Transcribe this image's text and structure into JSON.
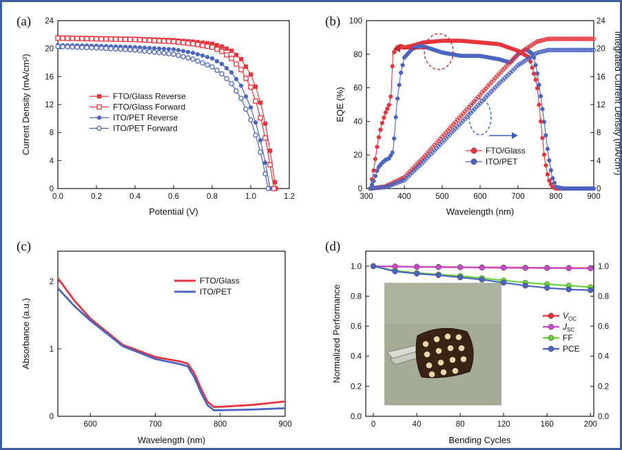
{
  "colors": {
    "red": "#e8343c",
    "blue": "#4a64c0",
    "magenta": "#c74bc8",
    "green": "#6ad13c",
    "annot_red": "#c0282e",
    "annot_blue": "#3c5ec4"
  },
  "chart_data": [
    {
      "panel": "(a)",
      "type": "line",
      "xlabel": "Potential (V)",
      "ylabel": "Current Density (mA/cm²)",
      "xlim": [
        0,
        1.2
      ],
      "ylim": [
        0,
        24
      ],
      "xticks": [
        "0.0",
        "0.2",
        "0.4",
        "0.6",
        "0.8",
        "1.0",
        "1.2"
      ],
      "yticks": [
        "0",
        "4",
        "8",
        "12",
        "16",
        "20",
        "24"
      ],
      "legend_position": "center-left",
      "series": [
        {
          "name": "FTO/Glass Reverse",
          "color": "#e8343c",
          "marker": "filled-square",
          "x": [
            0,
            0.2,
            0.4,
            0.6,
            0.7,
            0.8,
            0.85,
            0.9,
            0.95,
            1.0,
            1.03,
            1.06,
            1.08,
            1.1,
            1.12,
            1.13
          ],
          "y": [
            21.6,
            21.5,
            21.4,
            21.2,
            21.0,
            20.7,
            20.3,
            19.7,
            18.5,
            16.3,
            14.2,
            11.3,
            8.6,
            5.4,
            1.8,
            0
          ]
        },
        {
          "name": "FTO/Glass Forward",
          "color": "#e8343c",
          "marker": "open-square",
          "x": [
            0,
            0.2,
            0.4,
            0.6,
            0.7,
            0.8,
            0.85,
            0.9,
            0.95,
            1.0,
            1.03,
            1.06,
            1.08,
            1.1,
            1.12
          ],
          "y": [
            21.5,
            21.4,
            21.3,
            21.0,
            20.7,
            20.2,
            19.6,
            18.6,
            17.0,
            14.5,
            12.1,
            9.1,
            6.6,
            3.4,
            0
          ]
        },
        {
          "name": "ITO/PET Reverse",
          "color": "#4a64c0",
          "marker": "filled-circle",
          "x": [
            0,
            0.2,
            0.4,
            0.6,
            0.7,
            0.8,
            0.85,
            0.9,
            0.95,
            1.0,
            1.03,
            1.05,
            1.07,
            1.09,
            1.1
          ],
          "y": [
            20.5,
            20.4,
            20.2,
            19.9,
            19.4,
            18.6,
            17.8,
            16.6,
            14.7,
            11.6,
            9.0,
            6.9,
            4.4,
            1.6,
            0
          ]
        },
        {
          "name": "ITO/PET Forward",
          "color": "#4a64c0",
          "marker": "open-circle",
          "x": [
            0,
            0.2,
            0.4,
            0.6,
            0.7,
            0.8,
            0.85,
            0.9,
            0.95,
            1.0,
            1.03,
            1.05,
            1.07,
            1.08,
            1.09
          ],
          "y": [
            20.3,
            20.1,
            19.8,
            19.2,
            18.5,
            17.4,
            16.4,
            15.0,
            12.9,
            9.8,
            7.2,
            5.2,
            2.8,
            1.4,
            0
          ]
        }
      ]
    },
    {
      "panel": "(b)",
      "type": "line",
      "xlabel": "Wavelength (nm)",
      "ylabel": "EQE (%)",
      "ylabel_right": "Integrated Current Density (mA/cm²)",
      "xlim": [
        300,
        900
      ],
      "ylim": [
        0,
        100
      ],
      "ylim_right": [
        0,
        24
      ],
      "xticks": [
        "300",
        "400",
        "500",
        "600",
        "700",
        "800",
        "900"
      ],
      "yticks": [
        "0",
        "20",
        "40",
        "60",
        "80",
        "100"
      ],
      "yticks_right": [
        "0",
        "4",
        "8",
        "12",
        "16",
        "20",
        "24"
      ],
      "legend_position": "lower-center",
      "series": [
        {
          "name": "FTO/Glass",
          "axis": "left",
          "color": "#e8343c",
          "x": [
            310,
            320,
            330,
            340,
            350,
            360,
            365,
            370,
            380,
            390,
            400,
            420,
            450,
            500,
            550,
            600,
            650,
            700,
            730,
            750,
            760,
            770,
            780,
            790,
            800,
            820,
            850,
            900
          ],
          "y": [
            0,
            12,
            28,
            38,
            45,
            50,
            56,
            80,
            84,
            85,
            84,
            85,
            87,
            88,
            88,
            87,
            86,
            82,
            78,
            62,
            40,
            18,
            6,
            1,
            0,
            0,
            0,
            0
          ]
        },
        {
          "name": "ITO/PET",
          "axis": "left",
          "color": "#4a64c0",
          "x": [
            310,
            320,
            330,
            340,
            350,
            360,
            370,
            375,
            380,
            390,
            400,
            420,
            440,
            460,
            500,
            550,
            600,
            650,
            680,
            700,
            720,
            740,
            750,
            760,
            770,
            780,
            790,
            800,
            820,
            850,
            900
          ],
          "y": [
            0,
            5,
            12,
            15,
            17,
            18,
            22,
            35,
            50,
            68,
            78,
            83,
            85,
            84,
            81,
            79,
            79,
            77,
            75,
            80,
            83,
            80,
            70,
            55,
            38,
            20,
            7,
            1,
            0,
            0,
            0
          ]
        },
        {
          "name": "FTO/Glass integrated",
          "axis": "right",
          "color": "#e8343c",
          "x": [
            310,
            350,
            400,
            450,
            500,
            550,
            600,
            650,
            700,
            750,
            780,
            800,
            850,
            900
          ],
          "y": [
            0,
            0.3,
            1.6,
            4.4,
            7.4,
            10.4,
            13.4,
            16.4,
            19.2,
            21.0,
            21.4,
            21.4,
            21.4,
            21.4
          ]
        },
        {
          "name": "ITO/PET integrated",
          "axis": "right",
          "color": "#4a64c0",
          "x": [
            310,
            350,
            400,
            450,
            500,
            550,
            600,
            650,
            700,
            750,
            780,
            800,
            850,
            900
          ],
          "y": [
            0,
            0.2,
            1.2,
            3.8,
            6.6,
            9.4,
            12.2,
            15.0,
            17.6,
            19.4,
            19.8,
            19.8,
            19.8,
            19.8
          ]
        }
      ]
    },
    {
      "panel": "(c)",
      "type": "line",
      "xlabel": "Wavelength (nm)",
      "ylabel": "Absorbance (a.u.)",
      "xlim": [
        550,
        900
      ],
      "ylim": [
        0,
        2.45
      ],
      "xticks": [
        "600",
        "700",
        "800",
        "900"
      ],
      "yticks": [
        "0",
        "1",
        "2"
      ],
      "legend_position": "top-right",
      "series": [
        {
          "name": "FTO/Glass",
          "color": "#e8343c",
          "x": [
            550,
            575,
            600,
            650,
            700,
            740,
            750,
            760,
            770,
            780,
            790,
            800,
            850,
            900
          ],
          "y": [
            2.05,
            1.72,
            1.45,
            1.06,
            0.88,
            0.81,
            0.78,
            0.64,
            0.42,
            0.22,
            0.14,
            0.14,
            0.17,
            0.22
          ]
        },
        {
          "name": "ITO/PET",
          "color": "#4a64c0",
          "x": [
            550,
            575,
            600,
            650,
            700,
            740,
            750,
            760,
            770,
            780,
            790,
            800,
            850,
            900
          ],
          "y": [
            1.9,
            1.64,
            1.42,
            1.04,
            0.85,
            0.77,
            0.74,
            0.58,
            0.36,
            0.17,
            0.09,
            0.09,
            0.1,
            0.12
          ]
        }
      ]
    },
    {
      "panel": "(d)",
      "type": "line",
      "xlabel": "Bending Cycles",
      "ylabel": "Normalized Performance",
      "xlim": [
        -7,
        203
      ],
      "ylim": [
        0,
        1.1
      ],
      "ylim_right": [
        0,
        1.1
      ],
      "xticks": [
        "0",
        "40",
        "80",
        "120",
        "160",
        "200"
      ],
      "yticks": [
        "0.0",
        "0.2",
        "0.4",
        "0.6",
        "0.8",
        "1.0"
      ],
      "yticks_right": [
        "0.0",
        "0.2",
        "0.4",
        "0.6",
        "0.8",
        "1.0"
      ],
      "legend_position": "right",
      "series": [
        {
          "name": "V",
          "subscript": "OC",
          "color": "#e8343c",
          "x": [
            0,
            20,
            40,
            60,
            80,
            100,
            120,
            140,
            160,
            180,
            200
          ],
          "y": [
            1.0,
            0.998,
            0.996,
            0.995,
            0.993,
            0.992,
            0.991,
            0.99,
            0.989,
            0.988,
            0.987
          ]
        },
        {
          "name": "J",
          "subscript": "SC",
          "color": "#c74bc8",
          "x": [
            0,
            20,
            40,
            60,
            80,
            100,
            120,
            140,
            160,
            180,
            200
          ],
          "y": [
            1.0,
            0.997,
            0.995,
            0.993,
            0.992,
            0.99,
            0.989,
            0.988,
            0.987,
            0.986,
            0.985
          ]
        },
        {
          "name": "FF",
          "color": "#6ad13c",
          "x": [
            0,
            20,
            40,
            60,
            80,
            100,
            120,
            140,
            160,
            180,
            200
          ],
          "y": [
            1.0,
            0.97,
            0.955,
            0.945,
            0.935,
            0.92,
            0.905,
            0.89,
            0.88,
            0.87,
            0.86
          ]
        },
        {
          "name": "PCE",
          "color": "#4a64c0",
          "x": [
            0,
            20,
            40,
            60,
            80,
            100,
            120,
            140,
            160,
            180,
            200
          ],
          "y": [
            1.0,
            0.965,
            0.95,
            0.94,
            0.925,
            0.91,
            0.89,
            0.87,
            0.855,
            0.845,
            0.84
          ]
        }
      ]
    }
  ]
}
